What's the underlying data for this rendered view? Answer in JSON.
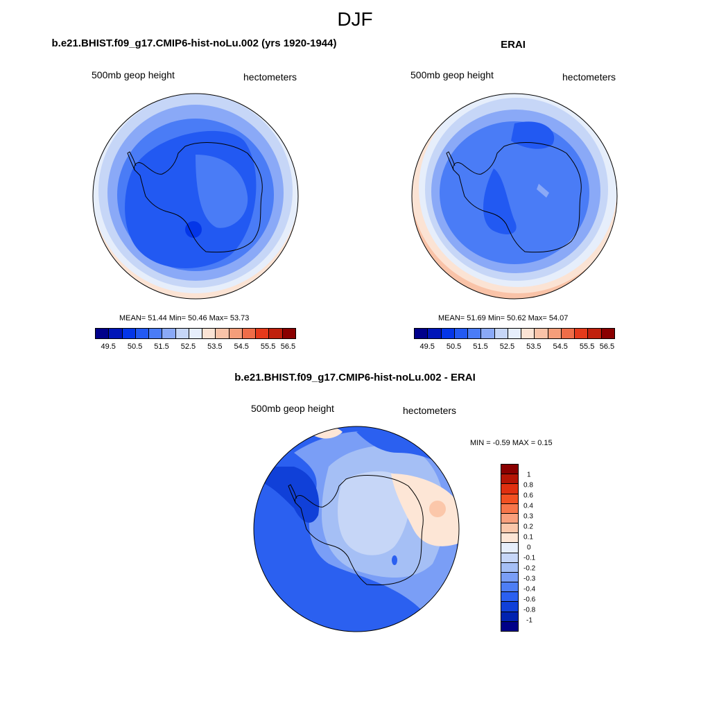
{
  "figure": {
    "title": "DJF"
  },
  "colors": {
    "full_field_scale": [
      "#00008a",
      "#0016b8",
      "#0436e8",
      "#2259f2",
      "#4a7cf6",
      "#8aa9f7",
      "#c6d6f7",
      "#e6eefb",
      "#fbe3d4",
      "#f9c3a8",
      "#f59e7a",
      "#ef6d48",
      "#e53a1b",
      "#c0200d",
      "#8a0000"
    ],
    "diff_scale": [
      "#8a0000",
      "#b51505",
      "#e03010",
      "#f25122",
      "#f7764a",
      "#f9a07d",
      "#fbc7aa",
      "#fde6d6",
      "#e6eefb",
      "#c6d6f7",
      "#a5bff5",
      "#7a9ef6",
      "#4e7ef4",
      "#2b60f0",
      "#1040d8",
      "#0022b0",
      "#000088"
    ]
  },
  "panels": [
    {
      "id": "model",
      "title": "b.e21.BHIST.f09_g17.CMIP6-hist-noLu.002 (yrs 1920-1944)",
      "left_label": "500mb geop height",
      "right_label": "hectometers",
      "stats": "MEAN=  51.44  Min=  50.46  Max=  53.73",
      "colorbar_labels": [
        "49.5",
        "50.5",
        "51.5",
        "52.5",
        "53.5",
        "54.5",
        "55.5",
        "56.5"
      ]
    },
    {
      "id": "obs",
      "title": "ERAI",
      "left_label": "500mb geop height",
      "right_label": "hectometers",
      "stats": "MEAN=  51.69  Min=  50.62  Max=  54.07",
      "colorbar_labels": [
        "49.5",
        "50.5",
        "51.5",
        "52.5",
        "53.5",
        "54.5",
        "55.5",
        "56.5"
      ]
    }
  ],
  "difference": {
    "title": "b.e21.BHIST.f09_g17.CMIP6-hist-noLu.002 - ERAI",
    "left_label": "500mb geop height",
    "right_label": "hectometers",
    "stats": "MIN =  -0.59 MAX =   0.15",
    "colorbar_labels": [
      "1",
      "0.8",
      "0.6",
      "0.4",
      "0.3",
      "0.2",
      "0.1",
      "0",
      "-0.1",
      "-0.2",
      "-0.3",
      "-0.4",
      "-0.6",
      "-0.8",
      "-1"
    ]
  }
}
